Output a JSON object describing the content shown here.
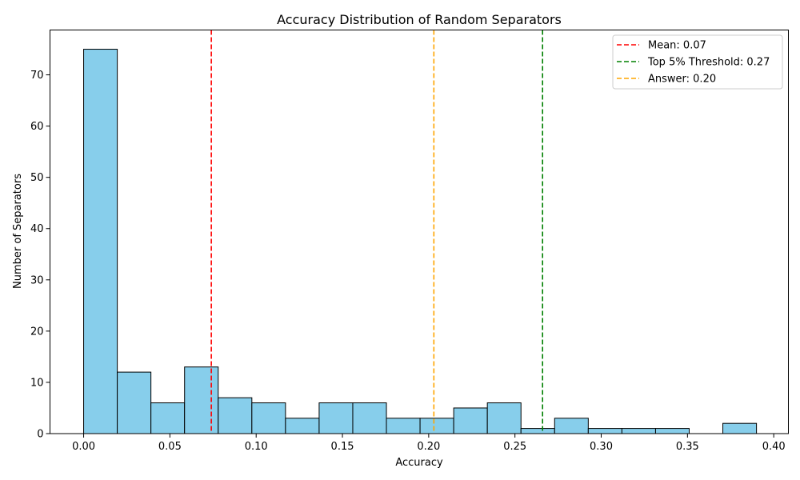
{
  "chart_data": {
    "type": "bar",
    "title": "Accuracy Distribution of Random Separators",
    "xlabel": "Accuracy",
    "ylabel": "Number of Separators",
    "xlim": [
      -0.0195,
      0.4085
    ],
    "ylim": [
      0,
      78.75
    ],
    "xticks": [
      0.0,
      0.05,
      0.1,
      0.15,
      0.2,
      0.25,
      0.3,
      0.35,
      0.4
    ],
    "xtick_labels": [
      "0.00",
      "0.05",
      "0.10",
      "0.15",
      "0.20",
      "0.25",
      "0.30",
      "0.35",
      "0.40"
    ],
    "yticks": [
      0,
      10,
      20,
      30,
      40,
      50,
      60,
      70
    ],
    "ytick_labels": [
      "0",
      "10",
      "20",
      "30",
      "40",
      "50",
      "60",
      "70"
    ],
    "grid": false,
    "legend_position": "top-right",
    "bin_edges": [
      0.0,
      0.0195,
      0.039,
      0.0585,
      0.078,
      0.0975,
      0.117,
      0.1365,
      0.156,
      0.1755,
      0.195,
      0.2145,
      0.234,
      0.2535,
      0.273,
      0.2925,
      0.312,
      0.3315,
      0.351,
      0.3705,
      0.39
    ],
    "counts": [
      75,
      12,
      6,
      13,
      7,
      6,
      3,
      6,
      6,
      3,
      3,
      5,
      6,
      1,
      3,
      1,
      1,
      1,
      0,
      2
    ],
    "bar_color": "#87ceeb",
    "edge_color": "#000000",
    "reference_lines": [
      {
        "label": "Mean: 0.07",
        "x": 0.074,
        "color": "#ff0000"
      },
      {
        "label": "Top 5% Threshold: 0.27",
        "x": 0.266,
        "color": "#008000"
      },
      {
        "label": "Answer: 0.20",
        "x": 0.203,
        "color": "#ffa500"
      }
    ]
  }
}
